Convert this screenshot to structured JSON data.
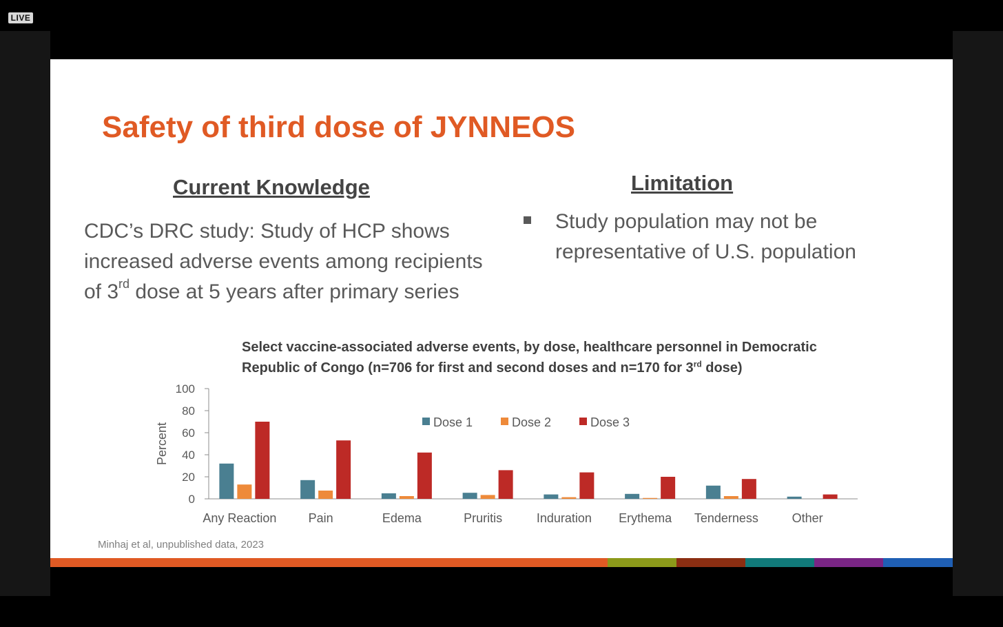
{
  "live_badge": "LIVE",
  "slide": {
    "title": "Safety of third dose of JYNNEOS",
    "left_heading": "Current Knowledge",
    "left_text_a": "CDC’s DRC study: Study of HCP shows increased adverse events among recipients of 3",
    "left_text_sup": "rd",
    "left_text_b": " dose at 5 years after primary series",
    "right_heading": "Limitation",
    "right_bullet": "Study population may not be representative of U.S. population",
    "citation": "Minhaj et al, unpublished data, 2023"
  },
  "chart_title": {
    "part1": "Select vaccine-associated adverse events, by dose, healthcare personnel in Democratic Republic of Congo (n=706 for first and second doses and n=170 for 3",
    "sup": "rd",
    "part2": " dose)"
  },
  "chart_data": {
    "type": "bar",
    "title": "Select vaccine-associated adverse events, by dose, healthcare personnel in Democratic Republic of Congo (n=706 for first and second doses and n=170 for 3rd dose)",
    "xlabel": "",
    "ylabel": "Percent",
    "ylim": [
      0,
      100
    ],
    "yticks": [
      0,
      20,
      40,
      60,
      80,
      100
    ],
    "categories": [
      "Any Reaction",
      "Pain",
      "Edema",
      "Pruritis",
      "Induration",
      "Erythema",
      "Tenderness",
      "Other"
    ],
    "series": [
      {
        "name": "Dose 1",
        "color": "#4a7f91",
        "values": [
          32,
          17,
          5,
          5.5,
          4,
          4.5,
          12,
          2
        ]
      },
      {
        "name": "Dose 2",
        "color": "#ee8a3a",
        "values": [
          13,
          7.5,
          2.5,
          3.5,
          1.5,
          0.8,
          2.5,
          0
        ]
      },
      {
        "name": "Dose 3",
        "color": "#bd2a26",
        "values": [
          70,
          53,
          42,
          26,
          24,
          20,
          18,
          4
        ]
      }
    ],
    "legend_position": "top-center",
    "grid": false
  },
  "bottom_bar_colors": [
    "#e05a24",
    "#8c9a1a",
    "#8b2e12",
    "#117a7a",
    "#7a2585",
    "#1f5fb4"
  ]
}
